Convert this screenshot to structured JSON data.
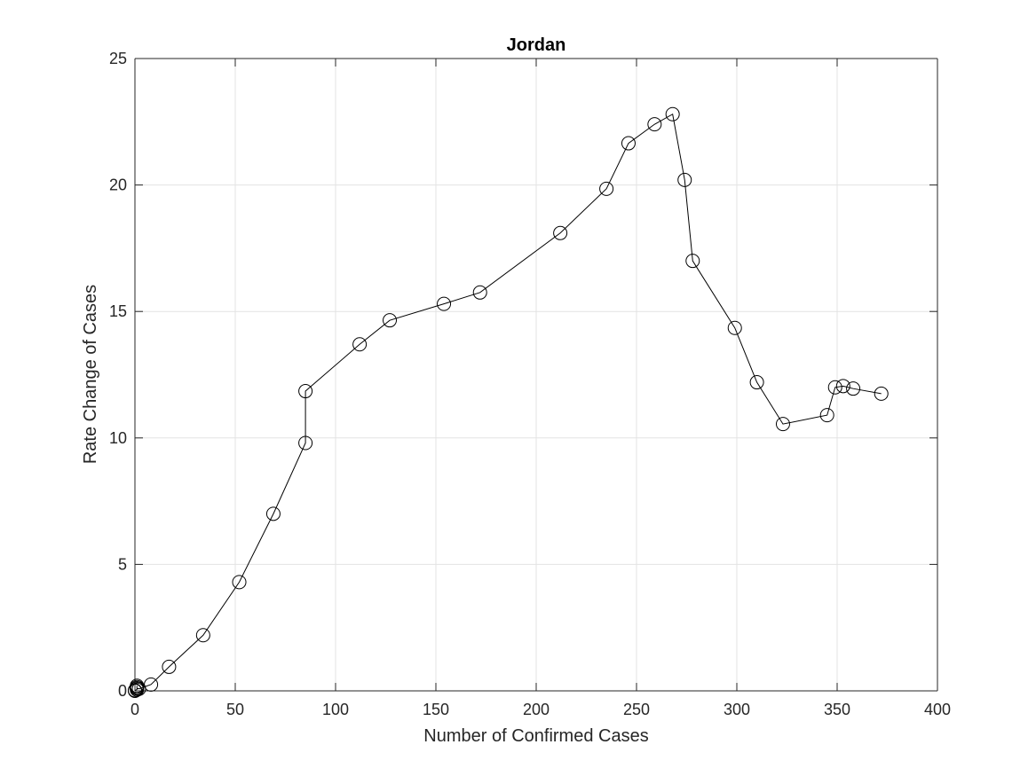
{
  "chart_data": {
    "type": "line",
    "title": "Jordan",
    "xlabel": "Number of Confirmed Cases",
    "ylabel": "Rate Change of Cases",
    "xlim": [
      0,
      400
    ],
    "ylim": [
      0,
      25
    ],
    "xticks": [
      0,
      50,
      100,
      150,
      200,
      250,
      300,
      350,
      400
    ],
    "yticks": [
      0,
      5,
      10,
      15,
      20,
      25
    ],
    "grid": true,
    "marker": "circle",
    "line_color": "#000000",
    "series": [
      {
        "x": [
          0,
          0,
          1,
          1,
          1,
          1,
          1,
          2,
          8,
          17,
          34,
          52,
          69,
          85,
          85,
          112,
          127,
          154,
          172,
          212,
          235,
          246,
          259,
          268,
          274,
          278,
          299,
          310,
          323,
          345,
          349,
          353,
          358,
          372
        ],
        "y": [
          0,
          0.02,
          0.05,
          0.1,
          0.15,
          0.2,
          0.1,
          0.08,
          0.25,
          0.95,
          2.2,
          4.3,
          7.0,
          9.8,
          11.85,
          13.7,
          14.65,
          15.3,
          15.75,
          18.1,
          19.85,
          21.65,
          22.4,
          22.8,
          20.2,
          17.0,
          14.35,
          12.2,
          10.55,
          10.9,
          12.0,
          12.05,
          11.95,
          11.75
        ]
      }
    ]
  }
}
